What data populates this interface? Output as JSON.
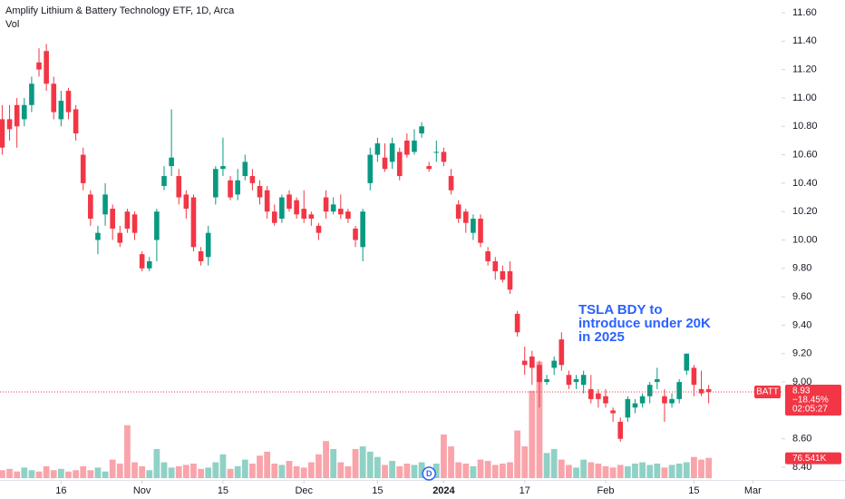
{
  "chart_data": {
    "type": "candlestick",
    "title": "Amplify Lithium & Battery Technology ETF, 1D, Arca",
    "volume_title": "Vol",
    "symbol": "BATT",
    "annotation": [
      "TSLA BDY to",
      "introduce under 20K",
      "in 2025"
    ],
    "up_color": "#089981",
    "down_color": "#f23645",
    "open": [
      10.85,
      10.85,
      10.95,
      10.85,
      10.95,
      11.25,
      11.33,
      11.1,
      10.85,
      11.05,
      10.92,
      10.6,
      10.32,
      10.0,
      10.18,
      10.22,
      10.05,
      10.2,
      10.18,
      9.9,
      9.8,
      10.0,
      10.38,
      10.52,
      10.45,
      10.32,
      10.3,
      9.92,
      9.88,
      10.3,
      10.5,
      10.42,
      10.32,
      10.45,
      10.45,
      10.38,
      10.35,
      10.2,
      10.15,
      10.32,
      10.28,
      10.22,
      10.18,
      10.1,
      10.3,
      10.2,
      10.22,
      10.2,
      10.08,
      9.95,
      10.4,
      10.6,
      10.58,
      10.55,
      10.62,
      10.7,
      10.62,
      10.75,
      10.52,
      10.62,
      10.62,
      10.45,
      10.25,
      10.2,
      10.05,
      10.15,
      9.92,
      9.85,
      9.78,
      9.78,
      9.48,
      9.15,
      9.18,
      9.12,
      9.0,
      9.1,
      9.3,
      9.05,
      9.0,
      8.98,
      8.95,
      8.92,
      8.9,
      8.8,
      8.72,
      8.75,
      8.82,
      8.85,
      8.9,
      9.0,
      8.9,
      8.85,
      8.88,
      9.08,
      9.1,
      8.95,
      8.95
    ],
    "high": [
      10.95,
      10.95,
      11.0,
      11.0,
      11.15,
      11.35,
      11.38,
      11.15,
      11.05,
      11.07,
      10.95,
      10.65,
      10.35,
      10.1,
      10.4,
      10.25,
      10.1,
      10.22,
      10.2,
      9.92,
      9.88,
      10.22,
      10.52,
      10.92,
      10.5,
      10.35,
      10.32,
      9.95,
      10.1,
      10.52,
      10.72,
      10.45,
      10.5,
      10.6,
      10.5,
      10.42,
      10.38,
      10.25,
      10.32,
      10.35,
      10.3,
      10.35,
      10.2,
      10.12,
      10.35,
      10.3,
      10.32,
      10.22,
      10.1,
      10.22,
      10.65,
      10.72,
      10.68,
      10.72,
      10.65,
      10.75,
      10.78,
      10.83,
      10.55,
      10.7,
      10.65,
      10.5,
      10.28,
      10.22,
      10.18,
      10.18,
      9.95,
      9.88,
      9.82,
      9.85,
      9.5,
      9.25,
      9.22,
      9.15,
      9.05,
      9.18,
      9.35,
      9.08,
      9.05,
      9.08,
      9.05,
      8.95,
      8.95,
      8.82,
      8.75,
      8.9,
      8.88,
      8.92,
      9.0,
      9.1,
      8.95,
      8.92,
      9.02,
      9.2,
      9.12,
      9.08,
      8.98
    ],
    "low": [
      10.6,
      10.7,
      10.65,
      10.8,
      10.9,
      11.15,
      11.05,
      10.85,
      10.8,
      10.85,
      10.7,
      10.35,
      10.1,
      9.9,
      10.1,
      10.0,
      9.95,
      10.05,
      10.0,
      9.78,
      9.78,
      9.85,
      10.35,
      10.45,
      10.25,
      10.15,
      9.92,
      9.82,
      9.82,
      10.25,
      10.45,
      10.28,
      10.28,
      10.42,
      10.35,
      10.25,
      10.15,
      10.1,
      10.12,
      10.2,
      10.15,
      10.12,
      10.1,
      10.0,
      10.15,
      10.18,
      10.15,
      10.12,
      9.95,
      9.85,
      10.35,
      10.55,
      10.48,
      10.5,
      10.42,
      10.58,
      10.6,
      10.72,
      10.48,
      10.55,
      10.52,
      10.32,
      10.12,
      10.05,
      10.0,
      9.95,
      9.82,
      9.72,
      9.7,
      9.62,
      9.32,
      9.05,
      8.98,
      8.82,
      8.98,
      9.05,
      9.08,
      8.95,
      8.95,
      8.92,
      8.85,
      8.82,
      8.82,
      8.72,
      8.58,
      8.72,
      8.78,
      8.82,
      8.85,
      8.95,
      8.72,
      8.82,
      8.85,
      9.05,
      8.9,
      8.9,
      8.85
    ],
    "close": [
      10.65,
      10.78,
      10.8,
      10.95,
      11.1,
      11.2,
      11.1,
      10.9,
      10.98,
      10.9,
      10.75,
      10.4,
      10.15,
      10.05,
      10.32,
      10.08,
      9.98,
      10.08,
      10.05,
      9.8,
      9.85,
      10.2,
      10.45,
      10.58,
      10.3,
      10.22,
      9.95,
      9.85,
      10.05,
      10.5,
      10.52,
      10.3,
      10.42,
      10.55,
      10.4,
      10.3,
      10.2,
      10.12,
      10.3,
      10.22,
      10.18,
      10.15,
      10.15,
      10.05,
      10.2,
      10.25,
      10.18,
      10.15,
      10.0,
      10.2,
      10.6,
      10.68,
      10.5,
      10.68,
      10.45,
      10.6,
      10.7,
      10.8,
      10.5,
      10.62,
      10.55,
      10.35,
      10.15,
      10.12,
      10.15,
      9.98,
      9.85,
      9.78,
      9.72,
      9.65,
      9.35,
      9.12,
      9.1,
      9.0,
      9.02,
      9.15,
      9.12,
      8.98,
      9.02,
      9.05,
      8.88,
      8.88,
      8.85,
      8.78,
      8.6,
      8.88,
      8.85,
      8.9,
      8.98,
      9.02,
      8.85,
      8.88,
      9.0,
      9.2,
      8.98,
      8.92,
      8.93
    ],
    "volume": [
      30000,
      35000,
      25000,
      40000,
      30000,
      25000,
      45000,
      30000,
      35000,
      25000,
      30000,
      45000,
      30000,
      40000,
      25000,
      70000,
      55000,
      200000,
      60000,
      45000,
      30000,
      110000,
      60000,
      40000,
      45000,
      50000,
      55000,
      35000,
      40000,
      60000,
      90000,
      35000,
      45000,
      70000,
      55000,
      85000,
      100000,
      55000,
      50000,
      65000,
      45000,
      40000,
      60000,
      90000,
      140000,
      110000,
      60000,
      45000,
      110000,
      120000,
      100000,
      80000,
      50000,
      65000,
      45000,
      55000,
      50000,
      60000,
      40000,
      55000,
      165000,
      120000,
      60000,
      55000,
      45000,
      70000,
      65000,
      50000,
      55000,
      60000,
      180000,
      120000,
      330000,
      440000,
      95000,
      110000,
      70000,
      50000,
      40000,
      70000,
      60000,
      55000,
      45000,
      40000,
      50000,
      45000,
      55000,
      60000,
      50000,
      55000,
      40000,
      50000,
      55000,
      60000,
      80000,
      70000,
      76541
    ],
    "xlim": [
      -0.3,
      105.9
    ],
    "xticks": [
      {
        "value": 8,
        "label": "16"
      },
      {
        "value": 19,
        "label": "Nov"
      },
      {
        "value": 30,
        "label": "15"
      },
      {
        "value": 41,
        "label": "Dec"
      },
      {
        "value": 51,
        "label": "15"
      },
      {
        "value": 60,
        "label": "2024"
      },
      {
        "value": 71,
        "label": "17"
      },
      {
        "value": 82,
        "label": "Feb"
      },
      {
        "value": 94,
        "label": "15"
      },
      {
        "value": 102,
        "label": "Mar"
      }
    ],
    "ylim": [
      8.4,
      11.6
    ],
    "yticks": [
      {
        "value": 8.4,
        "label": "8.40"
      },
      {
        "value": 8.6,
        "label": "8.60"
      },
      {
        "value": 9.0,
        "label": "9.00"
      },
      {
        "value": 9.2,
        "label": "9.20"
      },
      {
        "value": 9.4,
        "label": "9.40"
      },
      {
        "value": 9.6,
        "label": "9.60"
      },
      {
        "value": 9.8,
        "label": "9.80"
      },
      {
        "value": 10.0,
        "label": "10.00"
      },
      {
        "value": 10.2,
        "label": "10.20"
      },
      {
        "value": 10.4,
        "label": "10.40"
      },
      {
        "value": 10.6,
        "label": "10.60"
      },
      {
        "value": 10.8,
        "label": "10.80"
      },
      {
        "value": 11.0,
        "label": "11.00"
      },
      {
        "value": 11.2,
        "label": "11.20"
      },
      {
        "value": 11.4,
        "label": "11.40"
      },
      {
        "value": 11.6,
        "label": "11.60"
      }
    ],
    "volume_ylim": [
      0,
      600000
    ],
    "last_price": 8.93,
    "change_percent": {
      "value": -18.45,
      "label": "−18.45%"
    },
    "countdown": "02:05:27",
    "last_volume": {
      "value": 76541,
      "label": "76.541K"
    },
    "dividend_marker": {
      "label": "D",
      "index": 58
    }
  }
}
